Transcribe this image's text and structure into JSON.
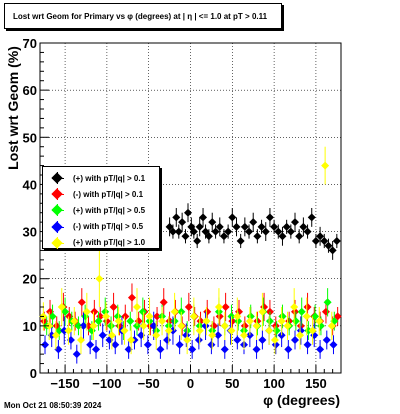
{
  "title": "Lost wrt Geom for Primary vs φ (degrees) at |  η | <= 1.0 at pT > 0.11",
  "timestamp": "Mon Oct 21 08:50:39 2024",
  "chart_data": {
    "type": "scatter",
    "xlabel": "φ (degrees)",
    "ylabel": "Lost wrt Geom (%)",
    "xlim": [
      -180,
      180
    ],
    "ylim": [
      0,
      70
    ],
    "xticks": [
      -150,
      -100,
      -50,
      0,
      50,
      100,
      150
    ],
    "yticks": [
      0,
      10,
      20,
      30,
      40,
      50,
      60,
      70
    ],
    "grid": true,
    "legend_position": "middle-left",
    "series": [
      {
        "name": "(+) with pT/|q| > 0.1",
        "color": "#000000",
        "x": [
          -25,
          -21,
          -17,
          -14,
          -10,
          -6,
          -3,
          1,
          4,
          8,
          11,
          15,
          18,
          22,
          26,
          30,
          35,
          40,
          45,
          50,
          55,
          60,
          65,
          70,
          75,
          80,
          85,
          90,
          95,
          100,
          105,
          110,
          115,
          120,
          125,
          130,
          135,
          140,
          145,
          150,
          155,
          160,
          165,
          170,
          175
        ],
        "y": [
          31,
          30,
          33,
          30,
          32,
          29,
          34,
          31,
          30,
          28,
          31,
          33,
          30,
          29,
          32,
          30,
          31,
          29,
          30,
          33,
          31,
          28,
          31,
          30,
          32,
          29,
          31,
          30,
          33,
          31,
          30,
          29,
          31,
          30,
          32,
          29,
          31,
          30,
          33,
          28,
          29,
          28,
          27,
          26,
          28
        ],
        "err": [
          2,
          1.5,
          2,
          1.5,
          2,
          1.5,
          2,
          2,
          1.5,
          1.5,
          2,
          2,
          1.5,
          1.5,
          2,
          1.5,
          2,
          1.5,
          1.5,
          2,
          2,
          1.5,
          2,
          1.5,
          2,
          1.5,
          1.5,
          2,
          2,
          1.5,
          1.5,
          2,
          1.5,
          1.5,
          2,
          1.5,
          2,
          1.5,
          2,
          1.5,
          2,
          1.5,
          1.5,
          2,
          1.5
        ]
      },
      {
        "name": "(-) with pT/|q| > 0.1",
        "color": "#ff0000",
        "x": [
          -175,
          -168,
          -160,
          -152,
          -145,
          -138,
          -130,
          -122,
          -115,
          -108,
          -100,
          -92,
          -85,
          -78,
          -70,
          -62,
          -55,
          -48,
          -40,
          -32,
          -25,
          -18,
          -10,
          -2,
          5,
          12,
          20,
          28,
          35,
          42,
          50,
          58,
          65,
          72,
          80,
          88,
          95,
          102,
          110,
          118,
          125,
          132,
          140,
          148,
          155,
          162,
          170,
          176
        ],
        "y": [
          11,
          13,
          10,
          14,
          12,
          11,
          15,
          10,
          13,
          12,
          11,
          14,
          10,
          12,
          16,
          11,
          13,
          10,
          12,
          15,
          11,
          13,
          10,
          14,
          12,
          11,
          13,
          10,
          12,
          14,
          11,
          13,
          10,
          12,
          11,
          14,
          13,
          10,
          12,
          11,
          13,
          10,
          14,
          12,
          11,
          13,
          10,
          12
        ],
        "err": [
          2,
          2.5,
          2,
          3,
          2,
          2,
          3,
          2,
          2.5,
          2,
          2,
          3,
          2,
          2.5,
          3,
          2,
          2.5,
          2,
          2,
          3,
          2,
          2.5,
          2,
          3,
          2,
          2,
          2.5,
          2,
          2,
          3,
          2,
          2.5,
          2,
          2,
          2,
          3,
          2.5,
          2,
          2,
          2,
          2.5,
          2,
          3,
          2,
          2,
          2.5,
          2,
          2
        ]
      },
      {
        "name": "(+) with pT/|q| > 0.5",
        "color": "#00ff00",
        "x": [
          -172,
          -165,
          -157,
          -150,
          -142,
          -134,
          -126,
          -118,
          -110,
          -102,
          -95,
          -87,
          -80,
          -72,
          -64,
          -57,
          -49,
          -41,
          -34,
          -26,
          -19,
          -11,
          -4,
          4,
          11,
          19,
          26,
          34,
          41,
          49,
          57,
          64,
          72,
          80,
          87,
          95,
          103,
          110,
          118,
          126,
          133,
          141,
          149,
          156,
          164,
          172
        ],
        "y": [
          10,
          12,
          9,
          13,
          11,
          10,
          12,
          9,
          11,
          13,
          10,
          12,
          9,
          11,
          10,
          13,
          11,
          9,
          12,
          10,
          11,
          13,
          9,
          12,
          10,
          11,
          9,
          13,
          10,
          12,
          11,
          9,
          12,
          10,
          13,
          11,
          9,
          12,
          10,
          11,
          13,
          9,
          12,
          10,
          15,
          11
        ],
        "err": [
          2,
          2.5,
          2,
          3,
          2,
          2,
          2.5,
          2,
          2,
          3,
          2,
          2.5,
          2,
          2,
          2,
          3,
          2,
          2,
          2.5,
          2,
          2,
          3,
          2,
          2.5,
          2,
          2,
          2,
          3,
          2,
          2.5,
          2,
          2,
          2.5,
          2,
          3,
          2,
          2,
          2.5,
          2,
          2,
          3,
          2,
          2.5,
          2,
          3,
          2
        ]
      },
      {
        "name": "(-) with pT/|q| > 0.5",
        "color": "#0000ff",
        "x": [
          -174,
          -166,
          -158,
          -151,
          -143,
          -136,
          -128,
          -120,
          -113,
          -105,
          -97,
          -90,
          -82,
          -74,
          -67,
          -59,
          -51,
          -44,
          -36,
          -28,
          -21,
          -13,
          -5,
          2,
          10,
          18,
          25,
          33,
          41,
          48,
          56,
          64,
          71,
          79,
          86,
          94,
          102,
          109,
          117,
          125,
          132,
          140,
          148,
          155,
          163,
          171
        ],
        "y": [
          6,
          8,
          5,
          9,
          7,
          4,
          10,
          6,
          5,
          8,
          7,
          6,
          9,
          5,
          7,
          8,
          6,
          10,
          5,
          7,
          9,
          6,
          8,
          5,
          7,
          10,
          6,
          8,
          5,
          9,
          7,
          6,
          8,
          5,
          7,
          9,
          6,
          8,
          5,
          7,
          9,
          6,
          8,
          5,
          7,
          6
        ],
        "err": [
          2,
          2.5,
          2,
          3,
          2,
          2,
          3,
          2,
          2,
          2.5,
          2,
          2,
          3,
          2,
          2,
          2.5,
          2,
          3,
          2,
          2,
          3,
          2,
          2.5,
          2,
          2,
          3,
          2,
          2.5,
          2,
          3,
          2,
          2,
          2.5,
          2,
          2,
          3,
          2,
          2.5,
          2,
          2,
          3,
          2,
          2.5,
          2,
          2,
          2
        ]
      },
      {
        "name": "(+) with pT/|q| > 1.0",
        "color": "#ffff00",
        "x": [
          -176,
          -169,
          -161,
          -154,
          -146,
          -139,
          -131,
          -124,
          -116,
          -109,
          -101,
          -94,
          -86,
          -79,
          -71,
          -64,
          -56,
          -49,
          -41,
          -34,
          -26,
          -19,
          -11,
          -4,
          4,
          11,
          19,
          26,
          34,
          41,
          49,
          56,
          64,
          71,
          79,
          86,
          94,
          101,
          109,
          116,
          124,
          131,
          139,
          146,
          154,
          161,
          169
        ],
        "y": [
          12,
          10,
          8,
          14,
          9,
          11,
          7,
          13,
          10,
          20,
          12,
          8,
          11,
          9,
          7,
          14,
          10,
          12,
          8,
          11,
          9,
          13,
          10,
          7,
          12,
          9,
          11,
          8,
          14,
          10,
          9,
          12,
          8,
          11,
          10,
          13,
          9,
          7,
          11,
          10,
          14,
          8,
          12,
          9,
          11,
          44,
          10
        ],
        "err": [
          3,
          3,
          3,
          4,
          3,
          3,
          3,
          4,
          3,
          6,
          3,
          3,
          3,
          3,
          3,
          4,
          3,
          4,
          3,
          3,
          3,
          4,
          3,
          3,
          4,
          3,
          3,
          3,
          4,
          3,
          3,
          4,
          3,
          3,
          3,
          4,
          3,
          3,
          3,
          3,
          4,
          3,
          4,
          3,
          3,
          4,
          3
        ]
      }
    ]
  }
}
